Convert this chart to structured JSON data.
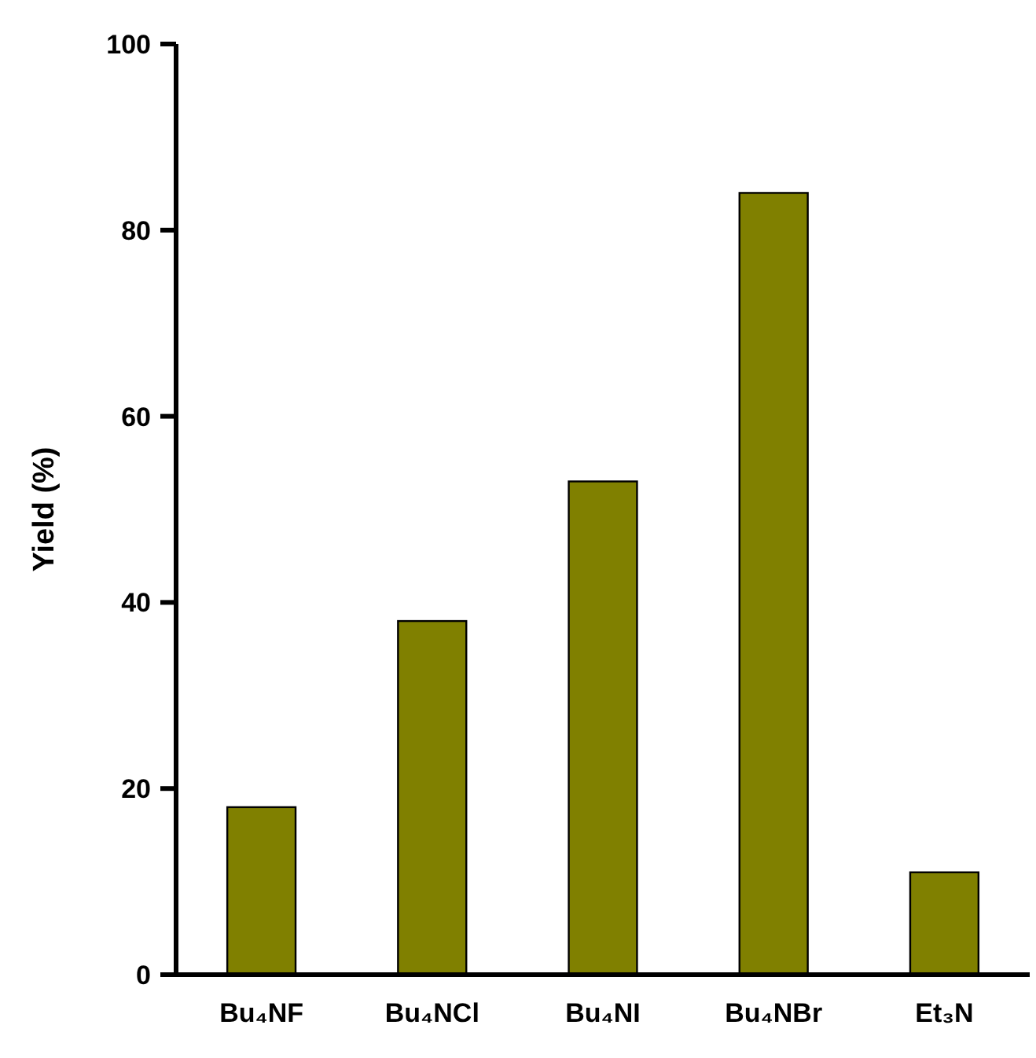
{
  "chart_data": {
    "type": "bar",
    "ylabel": "Yield (%)",
    "categories": [
      "Bu₄NF",
      "Bu₄NCl",
      "Bu₄NI",
      "Bu₄NBr",
      "Et₃N"
    ],
    "values": [
      18,
      38,
      53,
      84,
      11
    ],
    "color": "#808000",
    "ylim": [
      0,
      100
    ],
    "yticks": [
      0,
      20,
      40,
      60,
      80,
      100
    ],
    "grid": false
  }
}
